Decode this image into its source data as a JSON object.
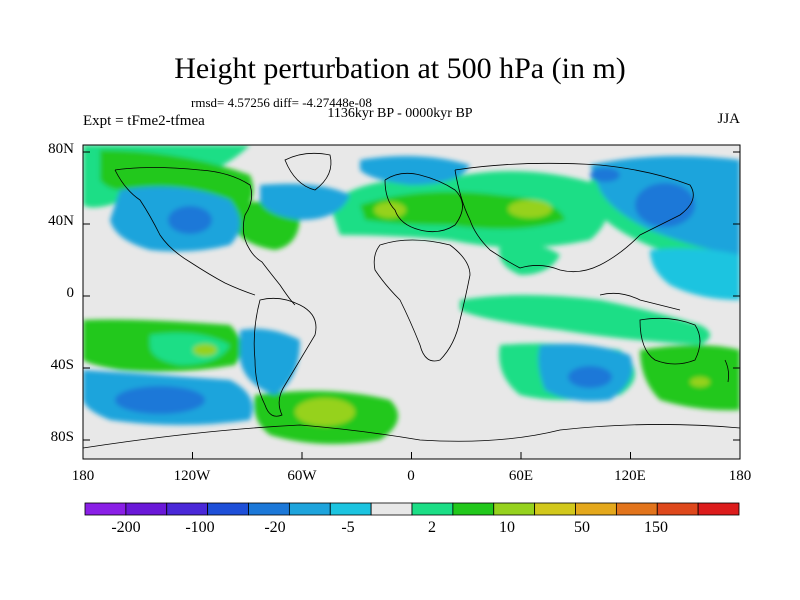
{
  "title": "Height perturbation at 500 hPa (in m)",
  "stats_text": "rmsd= 4.57256 diff= -4.27448e-08",
  "period_text": "1136kyr BP - 0000kyr BP",
  "experiment_text": "Expt = tFme2-tfmea",
  "season": "JJA",
  "lat_labels": [
    "80N",
    "40N",
    "0",
    "40S",
    "80S"
  ],
  "lon_labels": [
    "180",
    "120W",
    "60W",
    "0",
    "60E",
    "120E",
    "180"
  ],
  "colorbar": {
    "tick_labels": [
      "-200",
      "-100",
      "-20",
      "-5",
      "2",
      "10",
      "50",
      "150"
    ],
    "colors": [
      "#8a1fe6",
      "#6a18d8",
      "#4a28d8",
      "#1e4fd8",
      "#1c78d8",
      "#1ea4dc",
      "#1cc4e0",
      "#e8e8e8",
      "#1cde86",
      "#22c81c",
      "#96d21e",
      "#d2c81c",
      "#e4a81c",
      "#e2741c",
      "#de481c",
      "#dc1c1c"
    ]
  },
  "colors": {
    "missing_zone": "#e8e8e8",
    "coastline": "#000000"
  }
}
